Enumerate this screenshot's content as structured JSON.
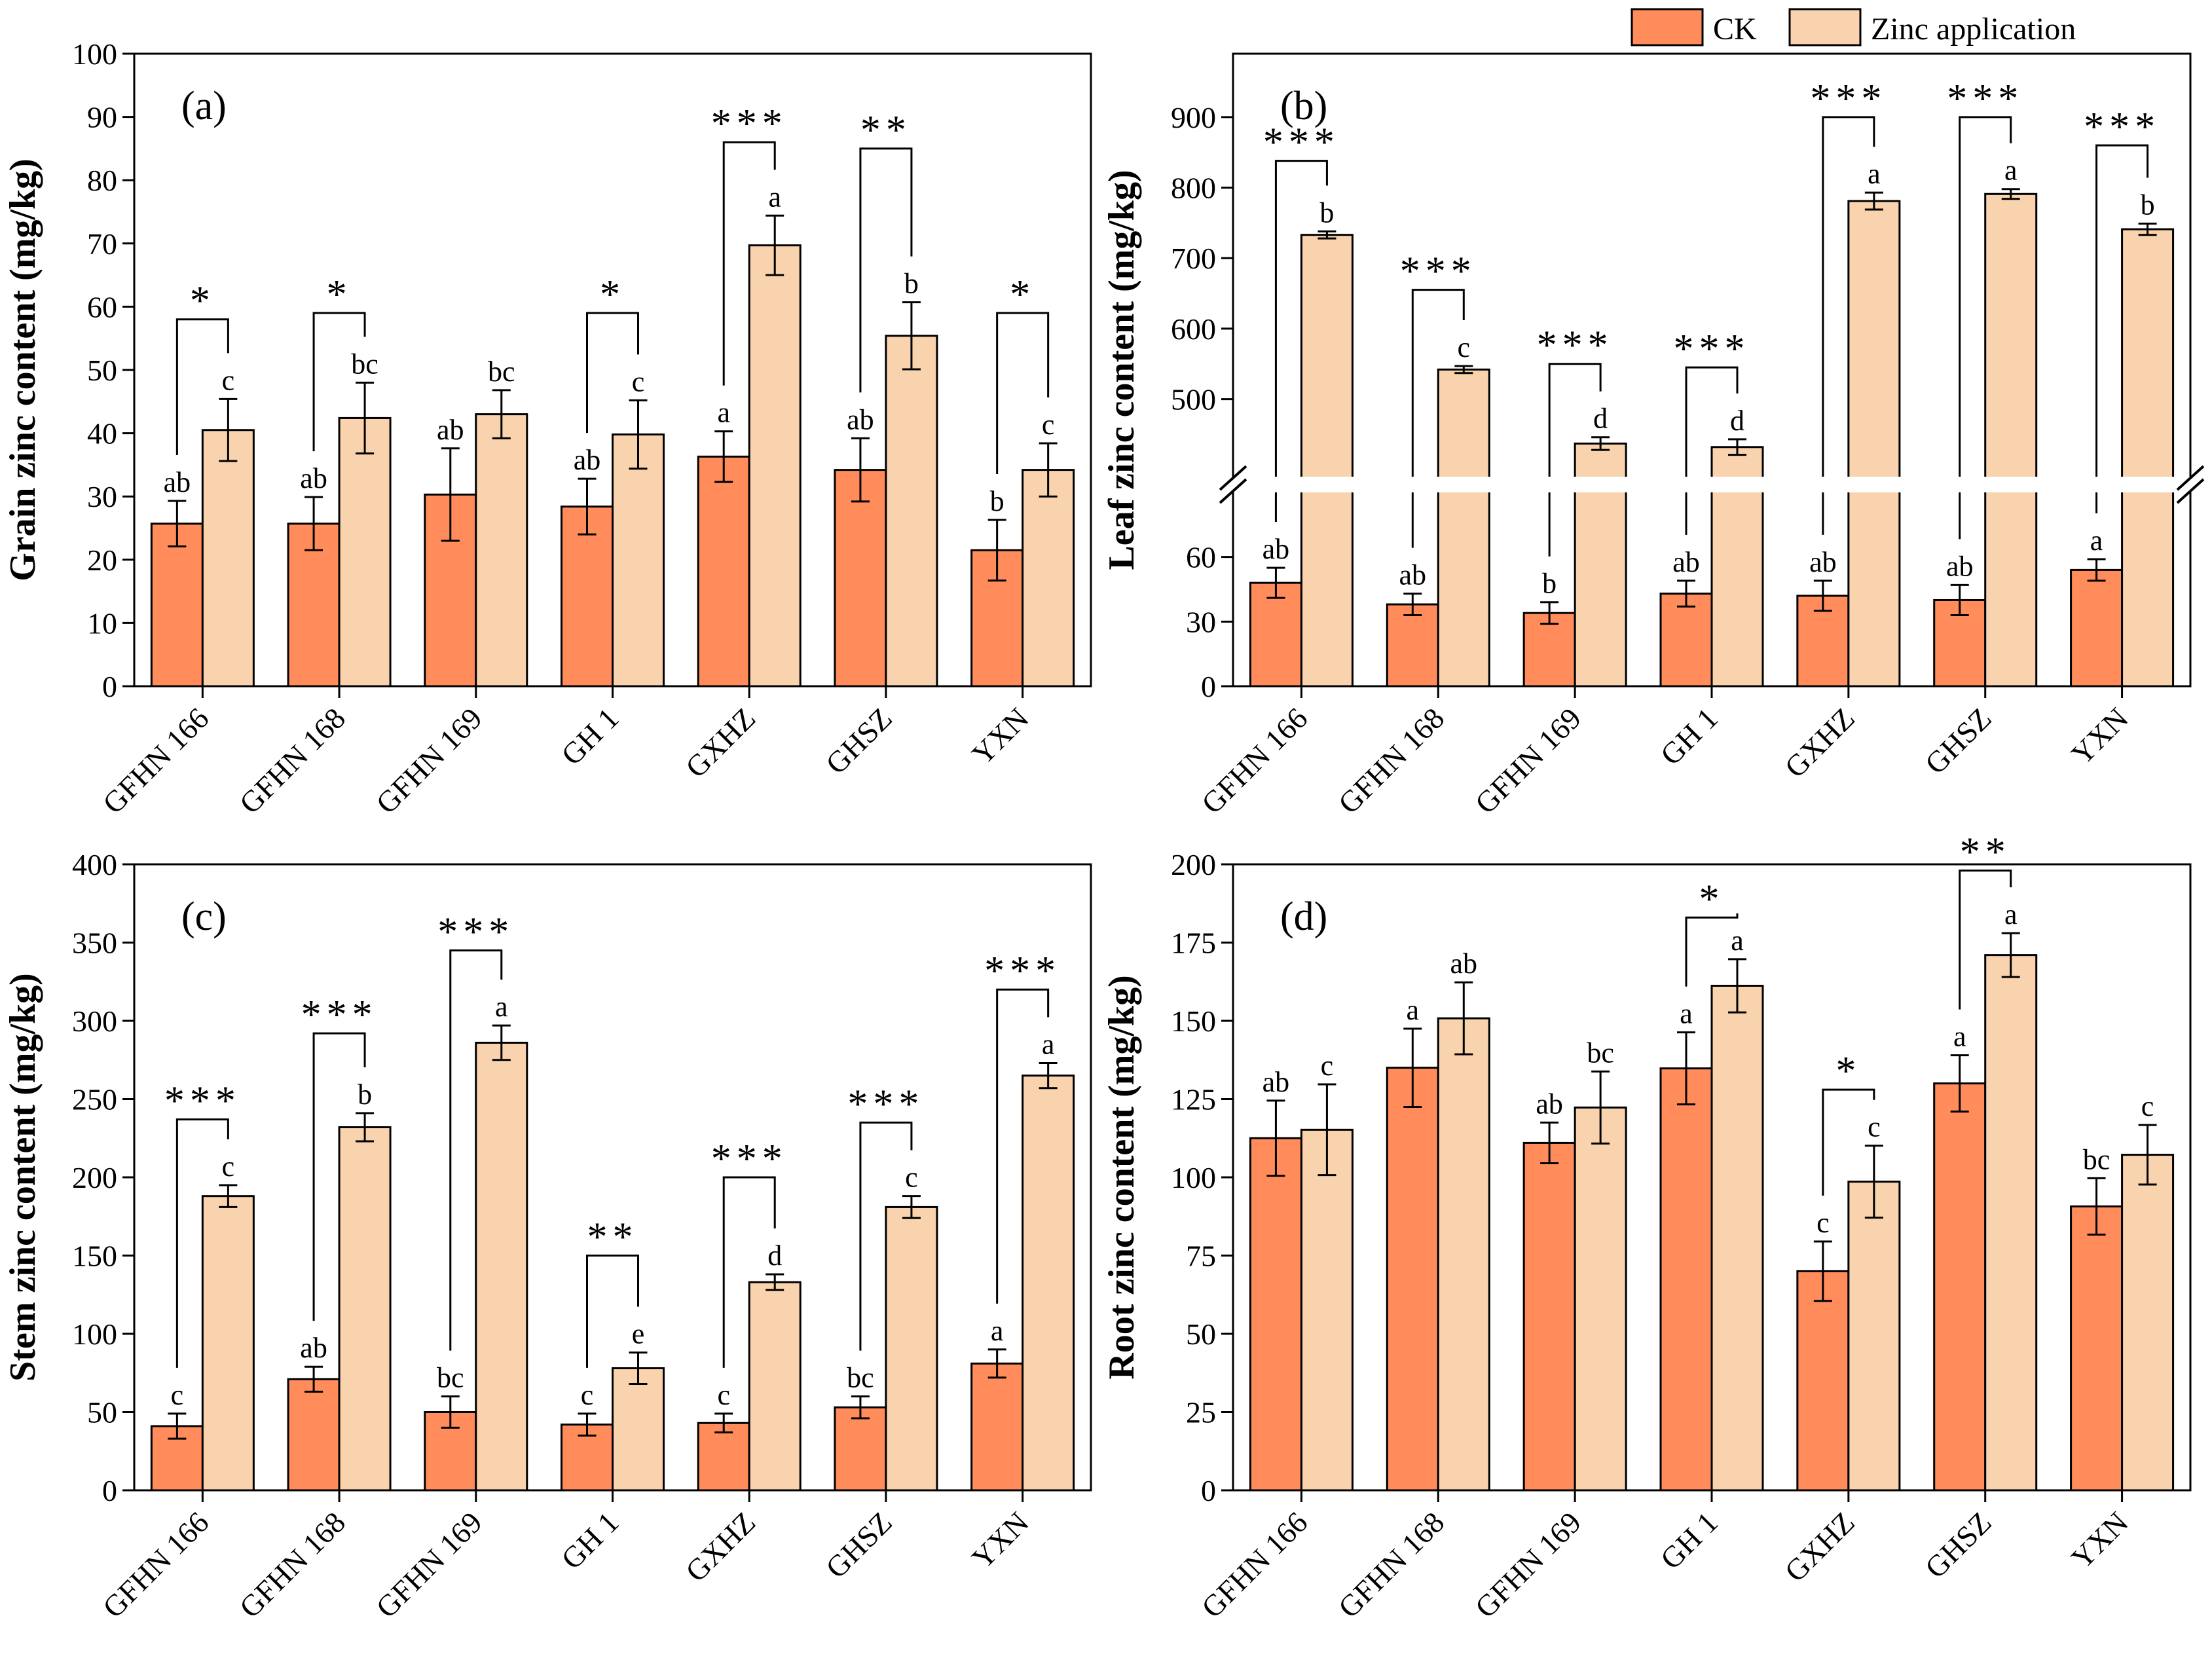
{
  "legend": {
    "ck_label": "CK",
    "zinc_label": "Zinc application"
  },
  "colors": {
    "ck": "#FF8C5A",
    "zinc": "#F9D2AE",
    "stroke": "#000000"
  },
  "chart_data": [
    {
      "type": "bar",
      "id": "a",
      "panel_label": "(a)",
      "ylabel": "Grain zinc content (mg/kg)",
      "categories": [
        "GFHN 166",
        "GFHN 168",
        "GFHN 169",
        "GH 1",
        "GXHZ",
        "GHSZ",
        "YXN"
      ],
      "ylim": [
        0,
        100
      ],
      "yticks": [
        0,
        10,
        20,
        30,
        40,
        50,
        60,
        70,
        80,
        90,
        100
      ],
      "series": [
        {
          "name": "CK",
          "values": [
            25.7,
            25.7,
            30.3,
            28.4,
            36.3,
            34.2,
            21.5
          ],
          "errors": [
            3.6,
            4.2,
            7.3,
            4.4,
            4.0,
            5.0,
            4.8
          ],
          "letters": [
            "ab",
            "ab",
            "ab",
            "ab",
            "a",
            "ab",
            "b"
          ]
        },
        {
          "name": "Zinc application",
          "values": [
            40.5,
            42.4,
            43.0,
            39.8,
            69.7,
            55.4,
            34.2
          ],
          "errors": [
            4.9,
            5.6,
            3.8,
            5.4,
            4.7,
            5.3,
            4.2
          ],
          "letters": [
            "c",
            "bc",
            "bc",
            "c",
            "a",
            "b",
            "c"
          ]
        }
      ],
      "significance": [
        "*",
        "*",
        "",
        "*",
        "***",
        "**",
        "*"
      ],
      "bracket_tops": [
        58,
        59,
        null,
        59,
        86,
        85,
        59
      ]
    },
    {
      "type": "bar",
      "id": "b",
      "panel_label": "(b)",
      "ylabel": "Leaf zinc content (mg/kg)",
      "categories": [
        "GFHN 166",
        "GFHN 168",
        "GFHN 169",
        "GH 1",
        "GXHZ",
        "GHSZ",
        "YXN"
      ],
      "axis_break": {
        "lower": [
          0,
          90
        ],
        "upper": [
          390,
          990
        ]
      },
      "yticks": [
        0,
        30,
        60,
        500,
        600,
        700,
        800,
        900
      ],
      "series": [
        {
          "name": "CK",
          "values": [
            48,
            38,
            34,
            43,
            42,
            40,
            54
          ],
          "errors": [
            7,
            5,
            5,
            6,
            7,
            7,
            5
          ],
          "letters": [
            "ab",
            "ab",
            "b",
            "ab",
            "ab",
            "ab",
            "a"
          ]
        },
        {
          "name": "Zinc application",
          "values": [
            733,
            542,
            437,
            432,
            781,
            791,
            741
          ],
          "errors": [
            5,
            5,
            9,
            11,
            12,
            7,
            8
          ],
          "letters": [
            "b",
            "c",
            "d",
            "d",
            "a",
            "a",
            "b"
          ]
        }
      ],
      "significance": [
        "***",
        "***",
        "***",
        "***",
        "***",
        "***",
        "***"
      ],
      "bracket_tops": [
        838,
        655,
        550,
        545,
        900,
        900,
        860
      ]
    },
    {
      "type": "bar",
      "id": "c",
      "panel_label": "(c)",
      "ylabel": "Stem zinc content (mg/kg)",
      "categories": [
        "GFHN 166",
        "GFHN 168",
        "GFHN 169",
        "GH 1",
        "GXHZ",
        "GHSZ",
        "YXN"
      ],
      "ylim": [
        0,
        400
      ],
      "yticks": [
        0,
        50,
        100,
        150,
        200,
        250,
        300,
        350,
        400
      ],
      "series": [
        {
          "name": "CK",
          "values": [
            41,
            71,
            50,
            42,
            43,
            53,
            81
          ],
          "errors": [
            8,
            8,
            10,
            7,
            6,
            7,
            9
          ],
          "letters": [
            "c",
            "ab",
            "bc",
            "c",
            "c",
            "bc",
            "a"
          ]
        },
        {
          "name": "Zinc application",
          "values": [
            188,
            232,
            286,
            78,
            133,
            181,
            265
          ],
          "errors": [
            7,
            9,
            11,
            10,
            5,
            7,
            8
          ],
          "letters": [
            "c",
            "b",
            "a",
            "e",
            "d",
            "c",
            "a"
          ]
        }
      ],
      "significance": [
        "***",
        "***",
        "***",
        "**",
        "***",
        "***",
        "***"
      ],
      "bracket_tops": [
        237,
        292,
        345,
        150,
        200,
        235,
        320
      ]
    },
    {
      "type": "bar",
      "id": "d",
      "panel_label": "(d)",
      "ylabel": "Root zinc content (mg/kg)",
      "categories": [
        "GFHN 166",
        "GFHN 168",
        "GFHN 169",
        "GH 1",
        "GXHZ",
        "GHSZ",
        "YXN"
      ],
      "ylim": [
        0,
        200
      ],
      "yticks": [
        0,
        25,
        50,
        75,
        100,
        125,
        150,
        175,
        200
      ],
      "series": [
        {
          "name": "CK",
          "values": [
            112.5,
            135.0,
            111.0,
            134.8,
            70.0,
            130.0,
            90.7
          ],
          "errors": [
            12,
            12.5,
            6.5,
            11.5,
            9.5,
            9.0,
            9.0
          ],
          "letters": [
            "ab",
            "a",
            "ab",
            "a",
            "c",
            "a",
            "bc"
          ]
        },
        {
          "name": "Zinc application",
          "values": [
            115.2,
            150.8,
            122.3,
            161.2,
            98.6,
            171.0,
            107.2
          ],
          "errors": [
            14.5,
            11.5,
            11.5,
            8.5,
            11.5,
            7.0,
            9.5
          ],
          "letters": [
            "c",
            "ab",
            "bc",
            "a",
            "c",
            "a",
            "c"
          ]
        }
      ],
      "significance": [
        "",
        "",
        "",
        "*",
        "*",
        "**",
        ""
      ],
      "bracket_tops": [
        null,
        null,
        null,
        183,
        128,
        198,
        null
      ]
    }
  ]
}
